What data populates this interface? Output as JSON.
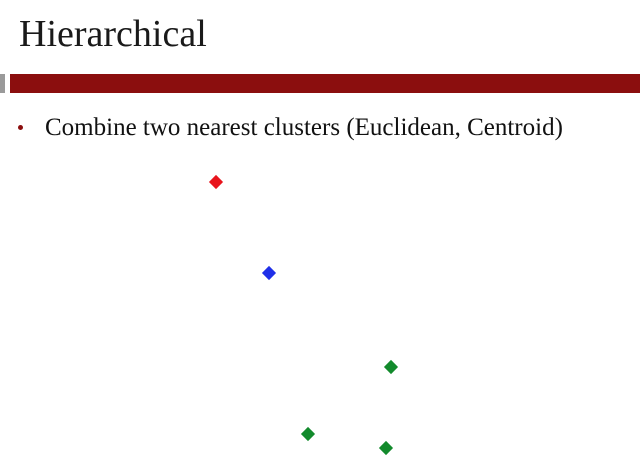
{
  "slide": {
    "title": "Hierarchical",
    "bullets": [
      "Combine two nearest clusters (Euclidean, Centroid)"
    ]
  },
  "colors": {
    "title_bar": "#8b0e0e",
    "bullet": "#8b0e0e",
    "cluster_red": "#e8141c",
    "cluster_blue": "#1f2fe8",
    "cluster_green": "#128a2c"
  },
  "points": [
    {
      "cluster": "red",
      "color": "#e8141c"
    },
    {
      "cluster": "blue",
      "color": "#1f2fe8"
    },
    {
      "cluster": "green",
      "color": "#128a2c"
    },
    {
      "cluster": "green",
      "color": "#128a2c"
    },
    {
      "cluster": "green",
      "color": "#128a2c"
    }
  ]
}
